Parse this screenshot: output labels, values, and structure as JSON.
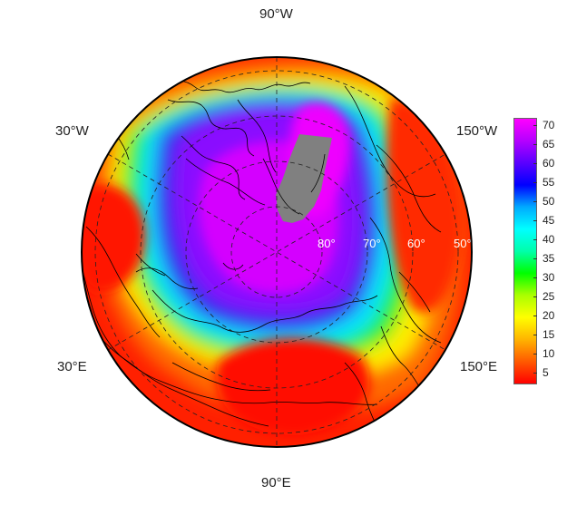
{
  "map": {
    "projection": "north polar stereographic",
    "longitude_labels": {
      "top": "90°W",
      "upper_left": "30°W",
      "upper_right": "150°W",
      "lower_left": "30°E",
      "lower_right": "150°E",
      "bottom": "90°E"
    },
    "latitude_labels": [
      "80°",
      "70°",
      "60°",
      "50°"
    ],
    "missing_color": "#808080",
    "coastline_color": "#000000",
    "grid_style": "dashed"
  },
  "colorbar": {
    "ticks": [
      "70",
      "65",
      "60",
      "55",
      "50",
      "45",
      "40",
      "35",
      "30",
      "25",
      "20",
      "15",
      "10",
      "5"
    ],
    "range": [
      2,
      72
    ],
    "stops": [
      "#ff0000",
      "#ff5a00",
      "#ffb400",
      "#ffff00",
      "#aaff00",
      "#00ff00",
      "#00ffaa",
      "#00ffff",
      "#00aaff",
      "#0000ff",
      "#5a00ff",
      "#b400ff",
      "#ff00ff"
    ]
  }
}
